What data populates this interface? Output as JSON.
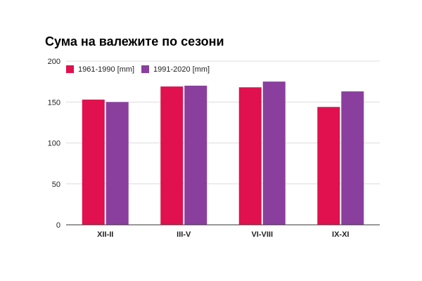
{
  "chart_data": {
    "type": "bar",
    "title": "Сума на валежите по сезони",
    "categories": [
      "XII-II",
      "III-V",
      "VI-VIII",
      "IX-XI"
    ],
    "series": [
      {
        "name": "1961-1990 [mm]",
        "color": "#e0114e",
        "values": [
          153,
          169,
          168,
          144
        ]
      },
      {
        "name": "1991-2020 [mm]",
        "color": "#8a3f9e",
        "values": [
          150,
          170,
          175,
          163
        ]
      }
    ],
    "ylim": [
      0,
      200
    ],
    "yticks": [
      0,
      50,
      100,
      150,
      200
    ],
    "xlabel": "",
    "ylabel": "",
    "grid": true,
    "legend_position": "top-left"
  }
}
